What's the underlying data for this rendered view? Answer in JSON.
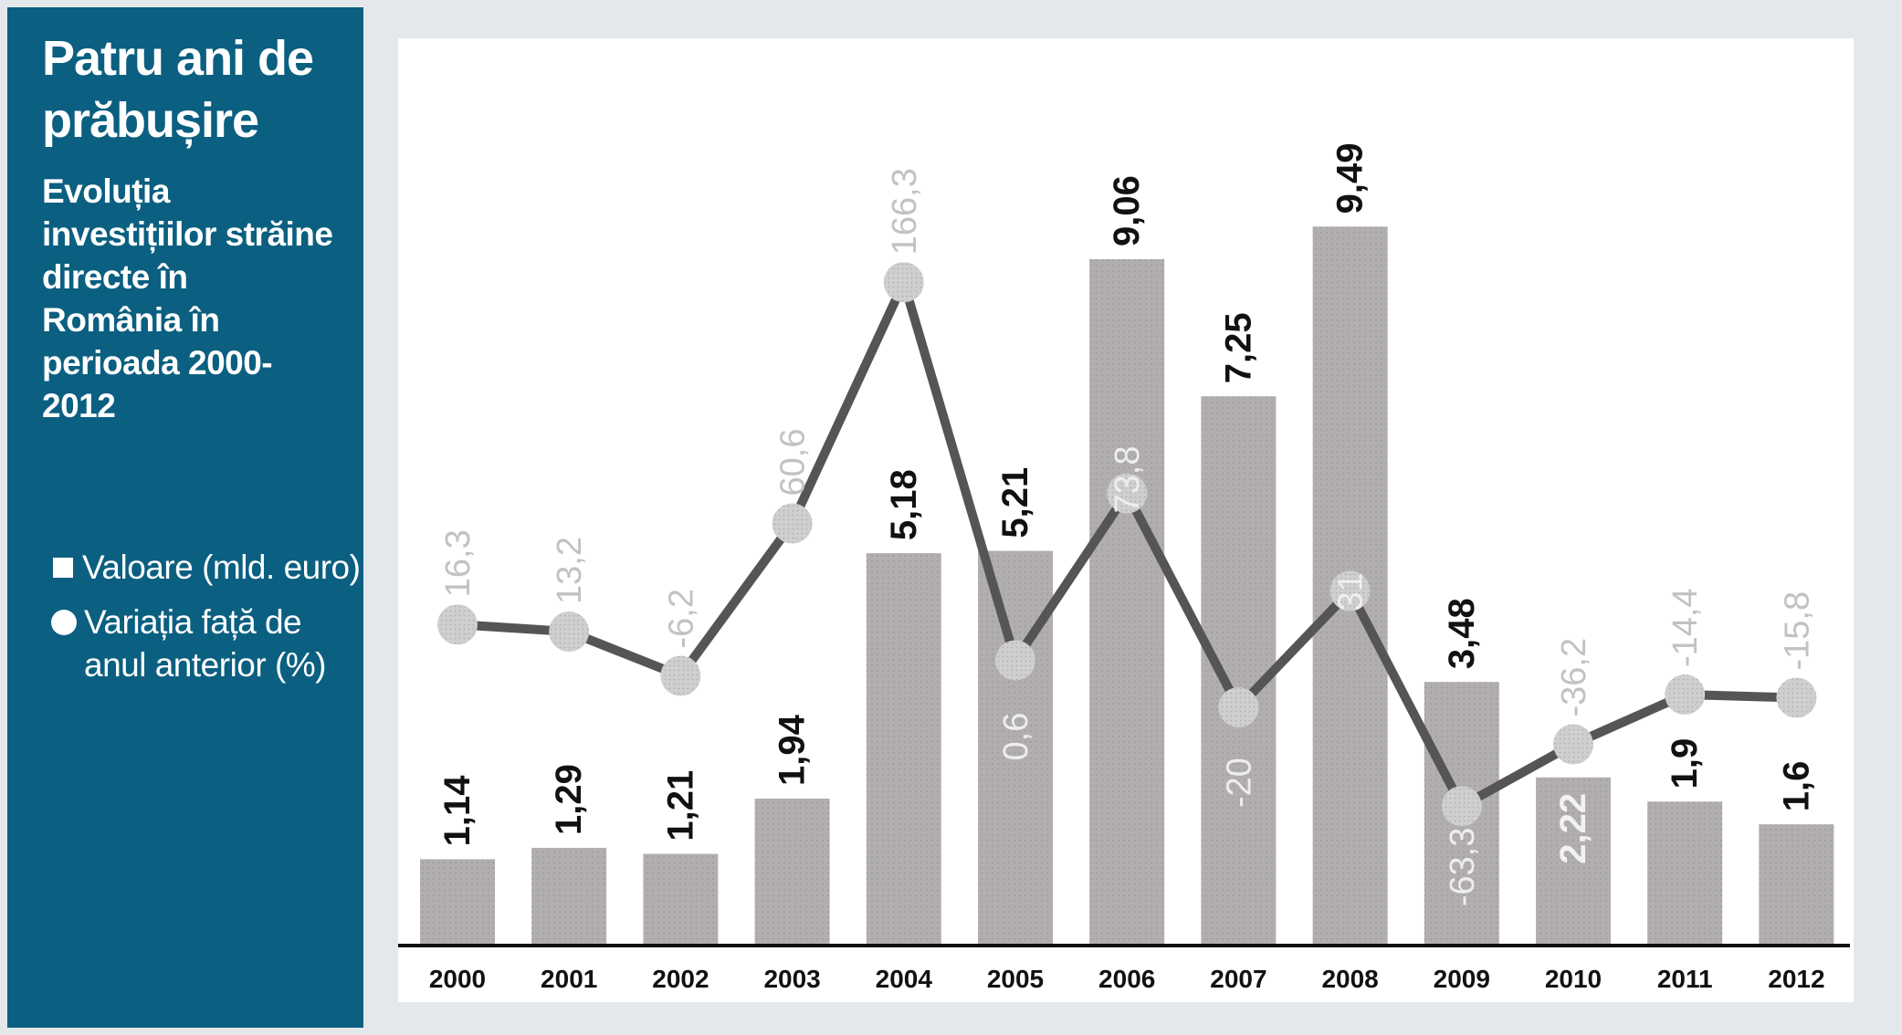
{
  "sidebar": {
    "title": "Patru ani de prăbușire",
    "subtitle": "Evoluția investițiilor străine directe în România în perioada 2000-2012",
    "legend_bar": "Valoare (mld. euro)",
    "legend_line": "Variația față de anul anterior (%)"
  },
  "colors": {
    "sidebar_bg": "#0b5f80",
    "bar": "#b3aeae",
    "line": "#555555",
    "marker": "#cfcfcf",
    "line_label": "#c2c2c2"
  },
  "chart_data": {
    "type": "bar",
    "categories": [
      "2000",
      "2001",
      "2002",
      "2003",
      "2004",
      "2005",
      "2006",
      "2007",
      "2008",
      "2009",
      "2010",
      "2011",
      "2012"
    ],
    "series": [
      {
        "name": "Valoare (mld. euro)",
        "type": "bar",
        "values": [
          1.14,
          1.29,
          1.21,
          1.94,
          5.18,
          5.21,
          9.06,
          7.25,
          9.49,
          3.48,
          2.22,
          1.9,
          1.6
        ],
        "labels": [
          "1,14",
          "1,29",
          "1,21",
          "1,94",
          "5,18",
          "5,21",
          "9,06",
          "7,25",
          "9,49",
          "3,48",
          "2,22",
          "1,9",
          "1,6"
        ]
      },
      {
        "name": "Variația față de anul anterior (%)",
        "type": "line",
        "values": [
          16.3,
          13.2,
          -6.2,
          60.6,
          166.3,
          0.6,
          73.8,
          -20,
          31,
          -63.3,
          -36.2,
          -14.4,
          -15.8
        ],
        "labels": [
          "16,3",
          "13,2",
          "-6,2",
          "60,6",
          "166,3",
          "0,6",
          "73,8",
          "-20",
          "31",
          "-63,3",
          "-36,2",
          "-14,4",
          "-15,8"
        ]
      }
    ],
    "ylim_bar": [
      0,
      10.5
    ],
    "ylim_line": [
      -70,
      175
    ],
    "grid": false,
    "legend": "left"
  }
}
